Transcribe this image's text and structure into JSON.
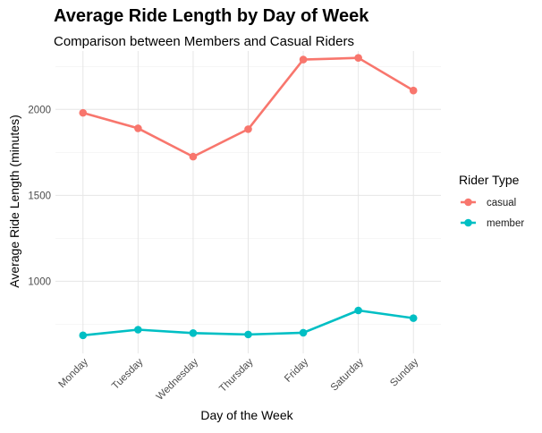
{
  "chart_data": {
    "type": "line",
    "title": "Average Ride Length by Day of Week",
    "subtitle": "Comparison between Members and Casual Riders",
    "xlabel": "Day of the Week",
    "ylabel": "Average Ride Length (minutes)",
    "categories": [
      "Monday",
      "Tuesday",
      "Wednesday",
      "Thursday",
      "Friday",
      "Saturday",
      "Sunday"
    ],
    "y_ticks": [
      1000,
      1500,
      2000
    ],
    "ylim": [
      580,
      2340
    ],
    "grid": true,
    "legend": {
      "title": "Rider Type",
      "position": "right"
    },
    "series": [
      {
        "name": "casual",
        "color": "#F8766D",
        "values": [
          1980,
          1890,
          1725,
          1885,
          2290,
          2300,
          2110
        ]
      },
      {
        "name": "member",
        "color": "#00BFC4",
        "values": [
          685,
          718,
          698,
          690,
          700,
          830,
          785
        ]
      }
    ]
  }
}
